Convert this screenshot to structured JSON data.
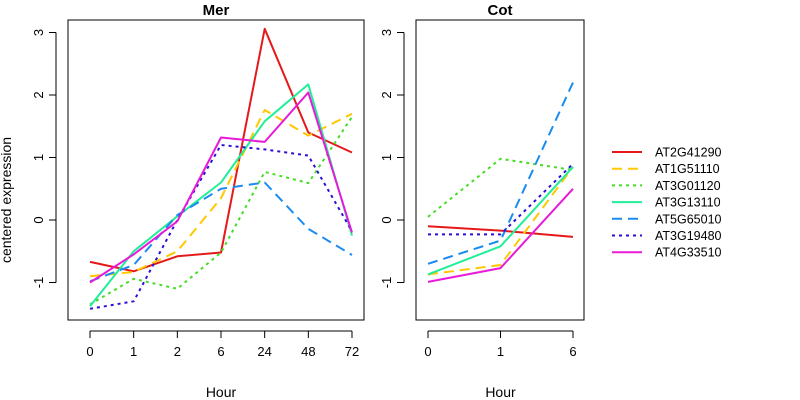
{
  "colors": {
    "AT2G41290": "#e6191a",
    "AT1G51110": "#ffc800",
    "AT3G01120": "#44dd22",
    "AT3G13110": "#22ee99",
    "AT5G65010": "#1a8cf0",
    "AT3G19480": "#2810d8",
    "AT4G33510": "#e81ad8"
  },
  "legend": [
    {
      "name": "AT2G41290",
      "dash": "solid"
    },
    {
      "name": "AT1G51110",
      "dash": "dashed"
    },
    {
      "name": "AT3G01120",
      "dash": "dotted"
    },
    {
      "name": "AT3G13110",
      "dash": "solid"
    },
    {
      "name": "AT5G65010",
      "dash": "dashed"
    },
    {
      "name": "AT3G19480",
      "dash": "dotted"
    },
    {
      "name": "AT4G33510",
      "dash": "solid"
    }
  ],
  "chart_data": [
    {
      "type": "line",
      "title": "Mer",
      "xlabel": "Hour",
      "ylabel": "centered expression",
      "categories": [
        "0",
        "1",
        "2",
        "6",
        "24",
        "48",
        "72"
      ],
      "ylim": [
        -1.6,
        3.2
      ],
      "yticks": [
        "-1",
        "0",
        "1",
        "2",
        "3"
      ],
      "ytick_values": [
        -1,
        0,
        1,
        2,
        3
      ],
      "series": [
        {
          "name": "AT2G41290",
          "values": [
            -0.67,
            -0.82,
            -0.58,
            -0.52,
            3.06,
            1.4,
            1.08
          ]
        },
        {
          "name": "AT1G51110",
          "values": [
            -0.9,
            -0.83,
            -0.5,
            0.35,
            1.76,
            1.35,
            1.7
          ]
        },
        {
          "name": "AT3G01120",
          "values": [
            -1.35,
            -0.94,
            -1.1,
            -0.52,
            0.77,
            0.59,
            1.65
          ]
        },
        {
          "name": "AT3G13110",
          "values": [
            -1.38,
            -0.5,
            0.06,
            0.6,
            1.58,
            2.17,
            -0.25
          ]
        },
        {
          "name": "AT5G65010",
          "values": [
            -0.98,
            -0.72,
            0.08,
            0.5,
            0.6,
            -0.14,
            -0.56
          ]
        },
        {
          "name": "AT3G19480",
          "values": [
            -1.42,
            -1.3,
            0.0,
            1.2,
            1.13,
            1.03,
            -0.18
          ]
        },
        {
          "name": "AT4G33510",
          "values": [
            -1.0,
            -0.55,
            -0.02,
            1.32,
            1.25,
            2.04,
            -0.2
          ]
        }
      ]
    },
    {
      "type": "line",
      "title": "Cot",
      "xlabel": "Hour",
      "ylabel": "",
      "categories": [
        "0",
        "1",
        "6"
      ],
      "ylim": [
        -1.6,
        3.2
      ],
      "yticks": [
        "-1",
        "0",
        "1",
        "2",
        "3"
      ],
      "ytick_values": [
        -1,
        0,
        1,
        2,
        3
      ],
      "series": [
        {
          "name": "AT2G41290",
          "values": [
            -0.1,
            -0.17,
            -0.27
          ]
        },
        {
          "name": "AT1G51110",
          "values": [
            -0.87,
            -0.72,
            0.85
          ]
        },
        {
          "name": "AT3G01120",
          "values": [
            0.05,
            0.98,
            0.8
          ]
        },
        {
          "name": "AT3G13110",
          "values": [
            -0.87,
            -0.42,
            0.85
          ]
        },
        {
          "name": "AT5G65010",
          "values": [
            -0.7,
            -0.33,
            2.2
          ]
        },
        {
          "name": "AT3G19480",
          "values": [
            -0.23,
            -0.23,
            0.9
          ]
        },
        {
          "name": "AT4G33510",
          "values": [
            -0.99,
            -0.77,
            0.5
          ]
        }
      ]
    }
  ]
}
